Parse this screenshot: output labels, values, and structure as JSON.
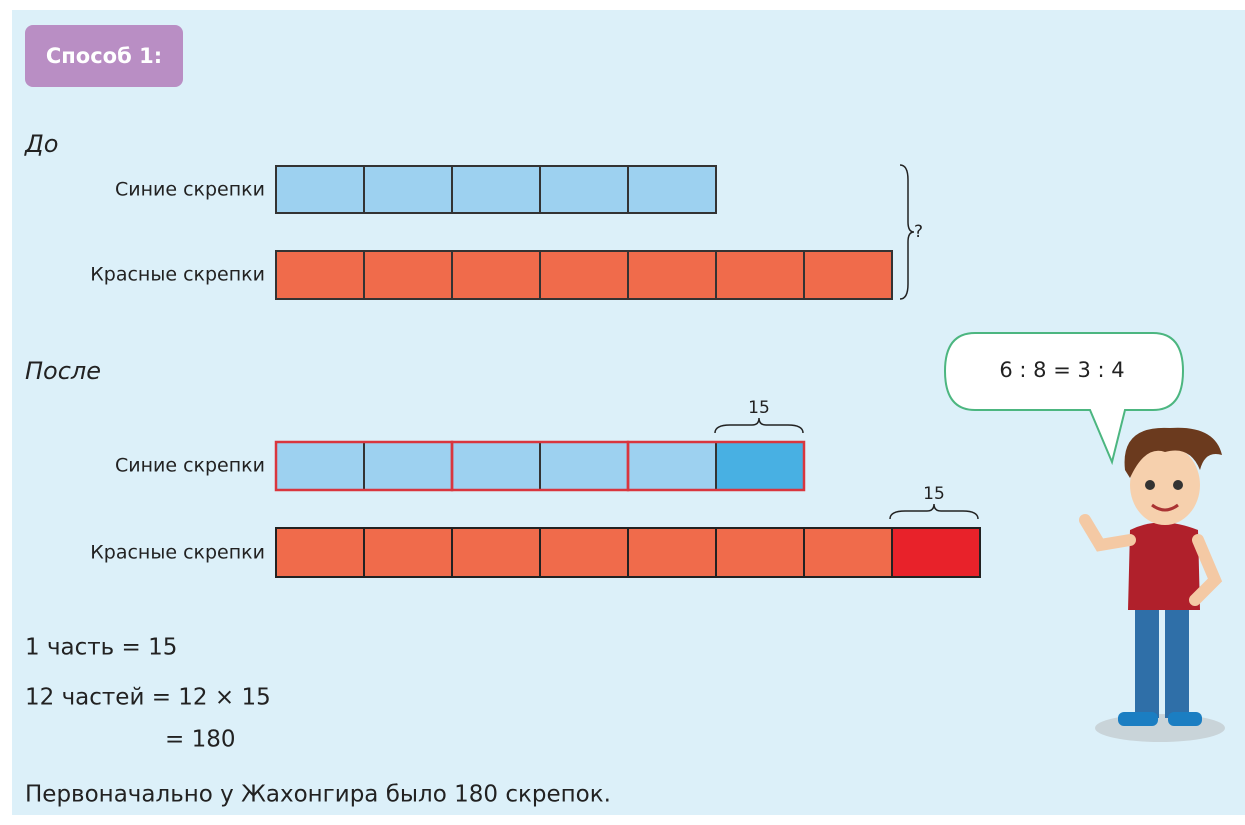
{
  "method": {
    "badge": "Способ 1:"
  },
  "before": {
    "heading": "До",
    "blue_label": "Синие скрепки",
    "red_label": "Красные скрепки",
    "total": "?"
  },
  "after": {
    "heading": "После",
    "blue_label": "Синие скрепки",
    "red_label": "Красные скрепки",
    "blue_added": "15",
    "red_added": "15"
  },
  "speech": "6 : 8 = 3 : 4",
  "solution": {
    "line1": "1 часть = 15",
    "line2": "12 частей = 12 × 15",
    "line3": "= 180",
    "answer": "Первоначально у Жахонгира было 180 скрепок."
  }
}
